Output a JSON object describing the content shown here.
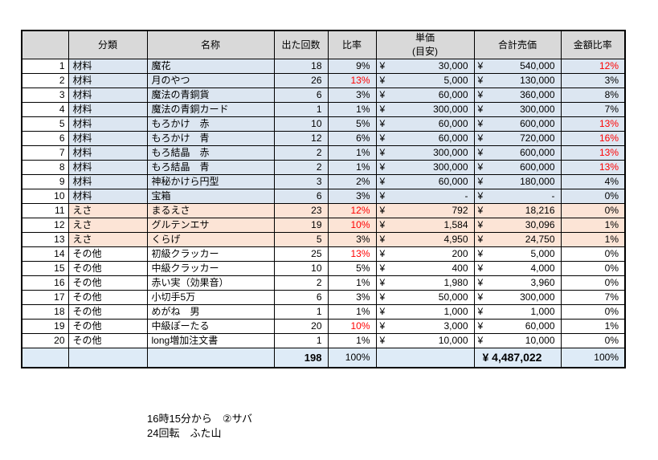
{
  "colors": {
    "header_bg": "#d9d9d9",
    "material_row_bg": "#dce6f1",
    "bait_row_bg": "#fce4d6",
    "other_row_bg": "#ffffff",
    "total_row_bg": "#deebf7",
    "highlight_red": "#ff0000",
    "grid_border": "#000000"
  },
  "table": {
    "currency": "¥",
    "headers": {
      "row_num": "",
      "category": "分類",
      "name": "名称",
      "count": "出た回数",
      "ratio": "比率",
      "unit_price": "単価",
      "unit_price_sub": "(目安)",
      "total_price": "合計売価",
      "amount_ratio": "金額比率"
    },
    "rows": [
      {
        "num": "1",
        "group": "material",
        "category": "材料",
        "name": "魔花",
        "count": "18",
        "ratio": "9%",
        "ratio_red": false,
        "unit_price": "30,000",
        "total_price": "540,000",
        "amount_ratio": "12%",
        "amount_red": true
      },
      {
        "num": "2",
        "group": "material",
        "category": "材料",
        "name": "月のやつ",
        "count": "26",
        "ratio": "13%",
        "ratio_red": true,
        "unit_price": "5,000",
        "total_price": "130,000",
        "amount_ratio": "3%",
        "amount_red": false
      },
      {
        "num": "3",
        "group": "material",
        "category": "材料",
        "name": "魔法の青銅貨",
        "count": "6",
        "ratio": "3%",
        "ratio_red": false,
        "unit_price": "60,000",
        "total_price": "360,000",
        "amount_ratio": "8%",
        "amount_red": false
      },
      {
        "num": "4",
        "group": "material",
        "category": "材料",
        "name": "魔法の青銅カード",
        "count": "1",
        "ratio": "1%",
        "ratio_red": false,
        "unit_price": "300,000",
        "total_price": "300,000",
        "amount_ratio": "7%",
        "amount_red": false
      },
      {
        "num": "5",
        "group": "material",
        "category": "材料",
        "name": "もろかけ　赤",
        "count": "10",
        "ratio": "5%",
        "ratio_red": false,
        "unit_price": "60,000",
        "total_price": "600,000",
        "amount_ratio": "13%",
        "amount_red": true
      },
      {
        "num": "6",
        "group": "material",
        "category": "材料",
        "name": "もろかけ　青",
        "count": "12",
        "ratio": "6%",
        "ratio_red": false,
        "unit_price": "60,000",
        "total_price": "720,000",
        "amount_ratio": "16%",
        "amount_red": true
      },
      {
        "num": "7",
        "group": "material",
        "category": "材料",
        "name": "もろ結晶　赤",
        "count": "2",
        "ratio": "1%",
        "ratio_red": false,
        "unit_price": "300,000",
        "total_price": "600,000",
        "amount_ratio": "13%",
        "amount_red": true
      },
      {
        "num": "8",
        "group": "material",
        "category": "材料",
        "name": "もろ結晶　青",
        "count": "2",
        "ratio": "1%",
        "ratio_red": false,
        "unit_price": "300,000",
        "total_price": "600,000",
        "amount_ratio": "13%",
        "amount_red": true
      },
      {
        "num": "9",
        "group": "material",
        "category": "材料",
        "name": "神秘かけら円型",
        "count": "3",
        "ratio": "2%",
        "ratio_red": false,
        "unit_price": "60,000",
        "total_price": "180,000",
        "amount_ratio": "4%",
        "amount_red": false
      },
      {
        "num": "10",
        "group": "material",
        "category": "材料",
        "name": "宝箱",
        "count": "6",
        "ratio": "3%",
        "ratio_red": false,
        "unit_price": "-",
        "total_price": "-",
        "amount_ratio": "0%",
        "amount_red": false
      },
      {
        "num": "11",
        "group": "bait",
        "category": "えさ",
        "name": "まるえさ",
        "count": "23",
        "ratio": "12%",
        "ratio_red": true,
        "unit_price": "792",
        "total_price": "18,216",
        "amount_ratio": "0%",
        "amount_red": false
      },
      {
        "num": "12",
        "group": "bait",
        "category": "えさ",
        "name": "グルテンエサ",
        "count": "19",
        "ratio": "10%",
        "ratio_red": true,
        "unit_price": "1,584",
        "total_price": "30,096",
        "amount_ratio": "1%",
        "amount_red": false
      },
      {
        "num": "13",
        "group": "bait",
        "category": "えさ",
        "name": "くらげ",
        "count": "5",
        "ratio": "3%",
        "ratio_red": false,
        "unit_price": "4,950",
        "total_price": "24,750",
        "amount_ratio": "1%",
        "amount_red": false
      },
      {
        "num": "14",
        "group": "other",
        "category": "その他",
        "name": "初級クラッカー",
        "count": "25",
        "ratio": "13%",
        "ratio_red": true,
        "unit_price": "200",
        "total_price": "5,000",
        "amount_ratio": "0%",
        "amount_red": false
      },
      {
        "num": "15",
        "group": "other",
        "category": "その他",
        "name": "中級クラッカー",
        "count": "10",
        "ratio": "5%",
        "ratio_red": false,
        "unit_price": "400",
        "total_price": "4,000",
        "amount_ratio": "0%",
        "amount_red": false
      },
      {
        "num": "16",
        "group": "other",
        "category": "その他",
        "name": "赤い実（効果音）",
        "count": "2",
        "ratio": "1%",
        "ratio_red": false,
        "unit_price": "1,980",
        "total_price": "3,960",
        "amount_ratio": "0%",
        "amount_red": false
      },
      {
        "num": "17",
        "group": "other",
        "category": "その他",
        "name": "小切手5万",
        "count": "6",
        "ratio": "3%",
        "ratio_red": false,
        "unit_price": "50,000",
        "total_price": "300,000",
        "amount_ratio": "7%",
        "amount_red": false
      },
      {
        "num": "18",
        "group": "other",
        "category": "その他",
        "name": "めがね　男",
        "count": "1",
        "ratio": "1%",
        "ratio_red": false,
        "unit_price": "1,000",
        "total_price": "1,000",
        "amount_ratio": "0%",
        "amount_red": false
      },
      {
        "num": "19",
        "group": "other",
        "category": "その他",
        "name": "中級ぽーたる",
        "count": "20",
        "ratio": "10%",
        "ratio_red": true,
        "unit_price": "3,000",
        "total_price": "60,000",
        "amount_ratio": "1%",
        "amount_red": false
      },
      {
        "num": "20",
        "group": "other",
        "category": "その他",
        "name": "long増加注文書",
        "count": "1",
        "ratio": "1%",
        "ratio_red": false,
        "unit_price": "10,000",
        "total_price": "10,000",
        "amount_ratio": "0%",
        "amount_red": false
      }
    ],
    "totals": {
      "count": "198",
      "ratio": "100%",
      "total_price": "¥ 4,487,022",
      "amount_ratio": "100%"
    }
  },
  "footer": {
    "line1": "16時15分から　②サバ",
    "line2": "24回転　ふた山"
  }
}
